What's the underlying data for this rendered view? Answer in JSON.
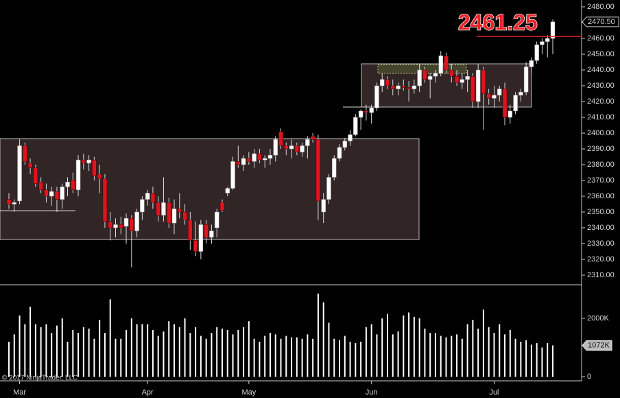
{
  "chart_data": [
    {
      "type": "candlestick",
      "categories": [
        null,
        null,
        "Mar",
        null,
        null,
        null,
        null,
        null,
        null,
        null,
        null,
        null,
        null,
        null,
        null,
        null,
        null,
        null,
        null,
        null,
        null,
        null,
        null,
        null,
        null,
        null,
        "Apr",
        null,
        null,
        null,
        null,
        null,
        null,
        null,
        null,
        null,
        null,
        null,
        null,
        null,
        null,
        null,
        null,
        null,
        null,
        "May",
        null,
        null,
        null,
        null,
        null,
        null,
        null,
        null,
        null,
        null,
        null,
        null,
        null,
        null,
        null,
        null,
        null,
        null,
        null,
        null,
        null,
        null,
        "Jun",
        null,
        null,
        null,
        null,
        null,
        null,
        null,
        null,
        null,
        null,
        null,
        null,
        null,
        null,
        null,
        null,
        null,
        null,
        null,
        null,
        null,
        null,
        "Jul",
        null,
        null,
        null,
        null,
        null,
        null,
        null,
        null,
        null,
        null,
        null
      ],
      "series": [
        {
          "open": [
            2358,
            2355,
            2357,
            2392,
            2381,
            2378,
            2369,
            2364,
            2360,
            2363,
            2358,
            2366,
            2370,
            2364,
            2383,
            2381,
            2383,
            2374,
            2371,
            2344,
            2340,
            2342,
            2341,
            2346,
            2338,
            2350,
            2358,
            2362,
            2356,
            2348,
            2356,
            2343,
            2352,
            2350,
            2345,
            2332,
            2325,
            2342,
            2334,
            2340,
            2356,
            2362,
            2365,
            2382,
            2380,
            2384,
            2382,
            2387,
            2383,
            2384,
            2386,
            2401,
            2392,
            2390,
            2392,
            2388,
            2392,
            2398,
            2396,
            2350,
            2358,
            2372,
            2384,
            2391,
            2395,
            2399,
            2410,
            2414,
            2413,
            2416,
            2430,
            2434,
            2430,
            2428,
            2430,
            2429,
            2428,
            2430,
            2440,
            2434,
            2436,
            2438,
            2449,
            2440,
            2436,
            2432,
            2434,
            2436,
            2420,
            2440,
            2425,
            2422,
            2424,
            2428,
            2410,
            2414,
            2424,
            2426,
            2442,
            2446,
            2456,
            2458,
            2460
          ],
          "high": [
            2362,
            2358,
            2396,
            2394,
            2384,
            2380,
            2372,
            2368,
            2366,
            2366,
            2368,
            2372,
            2375,
            2386,
            2387,
            2386,
            2385,
            2380,
            2374,
            2350,
            2346,
            2347,
            2349,
            2348,
            2352,
            2360,
            2364,
            2366,
            2360,
            2372,
            2359,
            2358,
            2362,
            2355,
            2350,
            2344,
            2345,
            2345,
            2342,
            2352,
            2358,
            2366,
            2385,
            2392,
            2386,
            2388,
            2390,
            2390,
            2386,
            2390,
            2398,
            2403,
            2394,
            2396,
            2394,
            2394,
            2398,
            2400,
            2399,
            2362,
            2374,
            2386,
            2393,
            2397,
            2402,
            2412,
            2415,
            2418,
            2418,
            2432,
            2438,
            2436,
            2434,
            2432,
            2434,
            2433,
            2434,
            2444,
            2442,
            2438,
            2440,
            2452,
            2451,
            2444,
            2440,
            2438,
            2440,
            2438,
            2444,
            2442,
            2428,
            2430,
            2430,
            2432,
            2418,
            2426,
            2428,
            2445,
            2448,
            2458,
            2460,
            2462,
            2472
          ],
          "low": [
            2352,
            2350,
            2355,
            2380,
            2374,
            2366,
            2362,
            2356,
            2354,
            2350,
            2352,
            2360,
            2362,
            2360,
            2377,
            2376,
            2370,
            2362,
            2340,
            2332,
            2334,
            2336,
            2330,
            2315,
            2334,
            2345,
            2354,
            2352,
            2344,
            2344,
            2340,
            2336,
            2346,
            2342,
            2326,
            2322,
            2320,
            2330,
            2330,
            2334,
            2350,
            2360,
            2364,
            2378,
            2376,
            2380,
            2378,
            2381,
            2378,
            2380,
            2382,
            2390,
            2386,
            2384,
            2386,
            2385,
            2384,
            2394,
            2345,
            2343,
            2355,
            2370,
            2382,
            2389,
            2392,
            2398,
            2402,
            2408,
            2406,
            2414,
            2426,
            2428,
            2424,
            2424,
            2427,
            2420,
            2425,
            2426,
            2432,
            2422,
            2432,
            2436,
            2438,
            2432,
            2430,
            2428,
            2426,
            2416,
            2416,
            2402,
            2418,
            2416,
            2420,
            2405,
            2406,
            2412,
            2420,
            2424,
            2438,
            2444,
            2450,
            2448,
            2450
          ],
          "close": [
            2355,
            2356,
            2392,
            2382,
            2378,
            2368,
            2364,
            2360,
            2363,
            2358,
            2366,
            2369,
            2364,
            2383,
            2381,
            2383,
            2373,
            2371,
            2344,
            2340,
            2342,
            2340,
            2346,
            2338,
            2350,
            2358,
            2362,
            2356,
            2348,
            2356,
            2343,
            2352,
            2350,
            2345,
            2332,
            2325,
            2342,
            2334,
            2338,
            2350,
            2351,
            2365,
            2382,
            2380,
            2384,
            2382,
            2387,
            2383,
            2384,
            2386,
            2396,
            2392,
            2390,
            2392,
            2388,
            2392,
            2396,
            2396,
            2357,
            2358,
            2372,
            2384,
            2391,
            2395,
            2399,
            2410,
            2414,
            2413,
            2416,
            2430,
            2434,
            2430,
            2428,
            2430,
            2429,
            2428,
            2430,
            2440,
            2434,
            2436,
            2438,
            2449,
            2440,
            2436,
            2432,
            2434,
            2436,
            2420,
            2440,
            2425,
            2422,
            2424,
            2428,
            2410,
            2414,
            2424,
            2426,
            2442,
            2446,
            2456,
            2458,
            2460,
            2470.5
          ],
          "up_color": "#ffffff",
          "down_color": "#e0141c"
        }
      ],
      "ylim": [
        2303.9,
        2484.35
      ],
      "yticks": [
        {
          "value": 2310,
          "label": "2310.00"
        },
        {
          "value": 2320,
          "label": "2320.00"
        },
        {
          "value": 2330,
          "label": "2330.00"
        },
        {
          "value": 2340,
          "label": "2340.00"
        },
        {
          "value": 2350,
          "label": "2350.00"
        },
        {
          "value": 2360,
          "label": "2360.00"
        },
        {
          "value": 2370,
          "label": "2370.00"
        },
        {
          "value": 2380,
          "label": "2380.00"
        },
        {
          "value": 2390,
          "label": "2390.00"
        },
        {
          "value": 2400,
          "label": "2400.00"
        },
        {
          "value": 2410,
          "label": "2410.00"
        },
        {
          "value": 2420,
          "label": "2420.00"
        },
        {
          "value": 2430,
          "label": "2430.00"
        },
        {
          "value": 2440,
          "label": "2440.00"
        },
        {
          "value": 2450,
          "label": "2450.00"
        },
        {
          "value": 2460,
          "label": "2460.00"
        },
        {
          "value": 2470,
          "label": "2470.00"
        },
        {
          "value": 2480,
          "label": "2480.00"
        }
      ],
      "last_price": {
        "value": 2470.5,
        "label": "2470.50"
      },
      "price_line": 2461.25,
      "watermark": "© 2017 NinjaTrader, LLC"
    },
    {
      "type": "bar",
      "values": [
        1200000,
        1450000,
        2100000,
        1800000,
        2400000,
        1800000,
        1700000,
        1800000,
        1500000,
        1750000,
        2000000,
        1200000,
        1600000,
        1500000,
        1700000,
        1650000,
        1300000,
        1950000,
        1500000,
        2650000,
        1300000,
        1300000,
        1600000,
        2000000,
        1800000,
        1800000,
        1800000,
        1600000,
        1400000,
        1550000,
        1900000,
        1800000,
        1700000,
        2000000,
        1500000,
        1700000,
        1400000,
        1300000,
        1500000,
        1700000,
        1650000,
        1600000,
        1450000,
        1600000,
        1700000,
        1900000,
        1300000,
        1200000,
        1400000,
        1500000,
        1450000,
        1300000,
        1400000,
        1350000,
        1350000,
        1300000,
        1450000,
        1300000,
        2850000,
        2550000,
        1850000,
        1300000,
        1250000,
        1400000,
        1200000,
        1150000,
        1200000,
        1700000,
        1800000,
        1450000,
        2000000,
        2150000,
        1450000,
        1550000,
        2100000,
        2200000,
        2050000,
        2000000,
        1650000,
        1500000,
        1500000,
        1400000,
        1350000,
        1400000,
        1450000,
        1300000,
        1800000,
        1950000,
        1650000,
        2300000,
        1700000,
        1500000,
        1800000,
        1450000,
        1600000,
        1300000,
        1200000,
        1250000,
        1100000,
        1150000,
        1000000,
        1150000,
        1072000
      ],
      "color": "#ffffff",
      "ylim": [
        0,
        3080000
      ],
      "yticks": [
        0,
        {
          "value": 2000000,
          "label": "2000K"
        }
      ],
      "last_value": {
        "value": 1072000,
        "label": "1072K"
      }
    }
  ]
}
